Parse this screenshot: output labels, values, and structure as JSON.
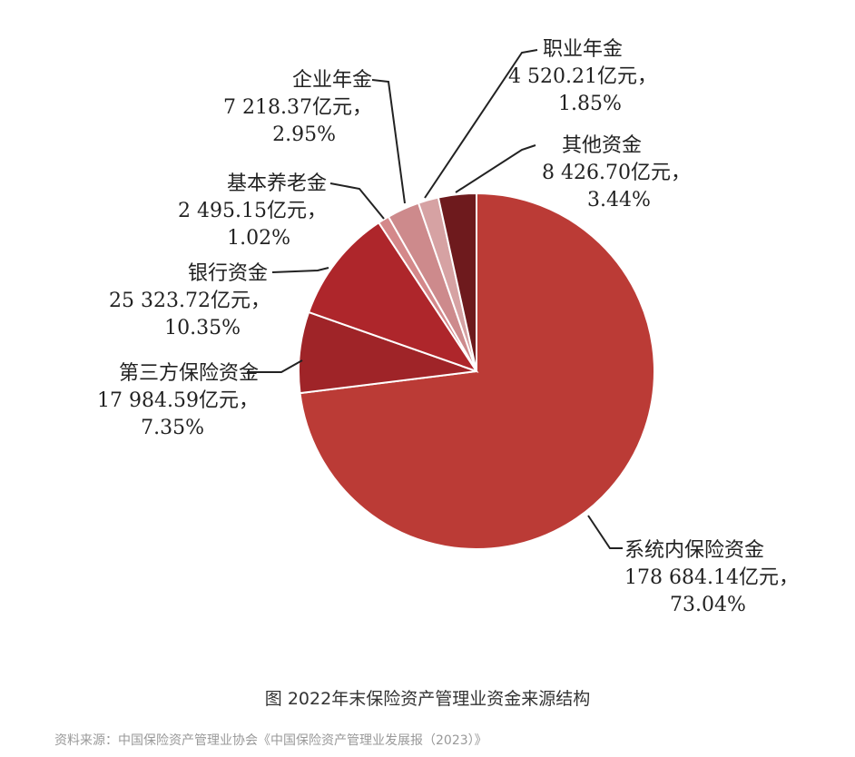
{
  "chart_data": {
    "type": "pie",
    "title": "图 2022年末保险资产管理业资金来源结构",
    "slices": [
      {
        "name": "系统内保险资金",
        "value_text": "178 684.14亿元，",
        "percent_text": "73.04%",
        "value": 178684.14,
        "percent": 73.04,
        "color": "#bb3b36"
      },
      {
        "name": "第三方保险资金",
        "value_text": "17 984.59亿元，",
        "percent_text": "7.35%",
        "value": 17984.59,
        "percent": 7.35,
        "color": "#9f2428"
      },
      {
        "name": "银行资金",
        "value_text": "25 323.72亿元，",
        "percent_text": "10.35%",
        "value": 25323.72,
        "percent": 10.35,
        "color": "#ae262b"
      },
      {
        "name": "基本养老金",
        "value_text": "2 495.15亿元，",
        "percent_text": "1.02%",
        "value": 2495.15,
        "percent": 1.02,
        "color": "#d4888a"
      },
      {
        "name": "企业年金",
        "value_text": "7 218.37亿元，",
        "percent_text": "2.95%",
        "value": 7218.37,
        "percent": 2.95,
        "color": "#cd8a8c"
      },
      {
        "name": "职业年金",
        "value_text": "4 520.21亿元，",
        "percent_text": "1.85%",
        "value": 4520.21,
        "percent": 1.85,
        "color": "#d6a2a3"
      },
      {
        "name": "其他资金",
        "value_text": "8 426.70亿元，",
        "percent_text": "3.44%",
        "value": 8426.7,
        "percent": 3.44,
        "color": "#6e1a1d"
      }
    ]
  },
  "source": "资料来源：中国保险资产管理业协会《中国保险资产管理业发展报（2023）》"
}
